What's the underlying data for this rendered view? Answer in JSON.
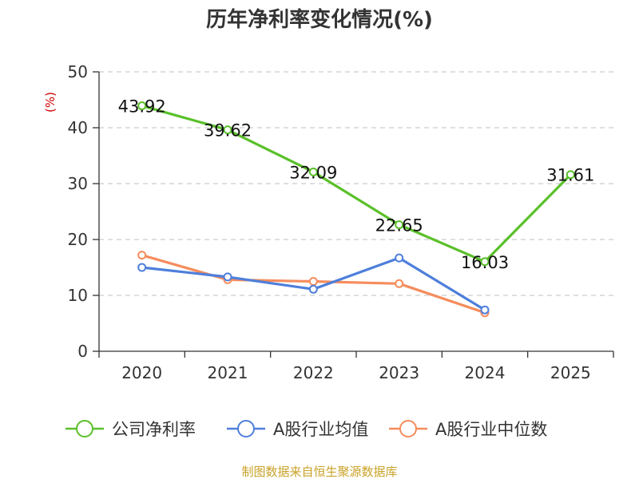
{
  "chart_data": {
    "type": "line",
    "title": "历年净利率变化情况(%)",
    "ylabel": "(%)",
    "xlabel": "",
    "categories": [
      "2020",
      "2021",
      "2022",
      "2023",
      "2024",
      "2025"
    ],
    "ylim": [
      0,
      50
    ],
    "yticks": [
      0,
      10,
      20,
      30,
      40,
      50
    ],
    "grid": true,
    "legend_position": "bottom",
    "series": [
      {
        "name": "公司净利率",
        "color": "#5ac02a",
        "values": [
          43.92,
          39.62,
          32.09,
          22.65,
          16.03,
          31.61
        ],
        "labels": [
          "43.92",
          "39.62",
          "32.09",
          "22.65",
          "16.03",
          "31.61"
        ]
      },
      {
        "name": "A股行业均值",
        "color": "#4e7fdb",
        "values": [
          15.0,
          13.3,
          11.1,
          16.7,
          7.4,
          null
        ]
      },
      {
        "name": "A股行业中位数",
        "color": "#f58d5d",
        "values": [
          17.2,
          12.8,
          12.5,
          12.1,
          6.9,
          null
        ]
      }
    ],
    "source": "制图数据来自恒生聚源数据库"
  },
  "colors": {
    "unit": "#cc0000",
    "source": "#c9a227",
    "axis": "#333333",
    "grid": "#cccccc"
  }
}
